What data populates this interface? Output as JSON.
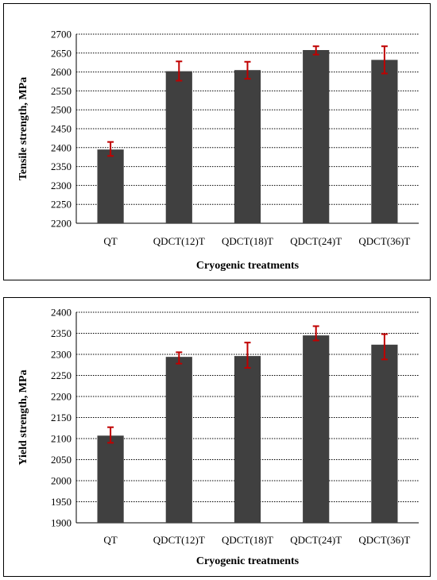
{
  "chart_data": [
    {
      "type": "bar",
      "categories": [
        "QT",
        "QDCT(12)T",
        "QDCT(18)T",
        "QDCT(24)T",
        "QDCT(36)T"
      ],
      "values": [
        2395,
        2602,
        2605,
        2658,
        2632
      ],
      "error_low": [
        2378,
        2577,
        2582,
        2646,
        2596
      ],
      "error_high": [
        2415,
        2628,
        2627,
        2668,
        2668
      ],
      "title": "",
      "xlabel": "Cryogenic treatments",
      "ylabel": "Tensile strength, MPa",
      "ylim": [
        2200,
        2700
      ],
      "yticks": [
        2200,
        2250,
        2300,
        2350,
        2400,
        2450,
        2500,
        2550,
        2600,
        2650,
        2700
      ],
      "grid": true,
      "bar_color": "#404040",
      "error_color": "#c00000"
    },
    {
      "type": "bar",
      "categories": [
        "QT",
        "QDCT(12)T",
        "QDCT(18)T",
        "QDCT(24)T",
        "QDCT(36)T"
      ],
      "values": [
        2107,
        2294,
        2296,
        2345,
        2323
      ],
      "error_low": [
        2090,
        2278,
        2268,
        2333,
        2288
      ],
      "error_high": [
        2127,
        2305,
        2328,
        2367,
        2348
      ],
      "title": "",
      "xlabel": "Cryogenic treatments",
      "ylabel": "Yield strength, MPa",
      "ylim": [
        1900,
        2400
      ],
      "yticks": [
        1900,
        1950,
        2000,
        2050,
        2100,
        2150,
        2200,
        2250,
        2300,
        2350,
        2400
      ],
      "grid": true,
      "bar_color": "#404040",
      "error_color": "#c00000"
    }
  ]
}
